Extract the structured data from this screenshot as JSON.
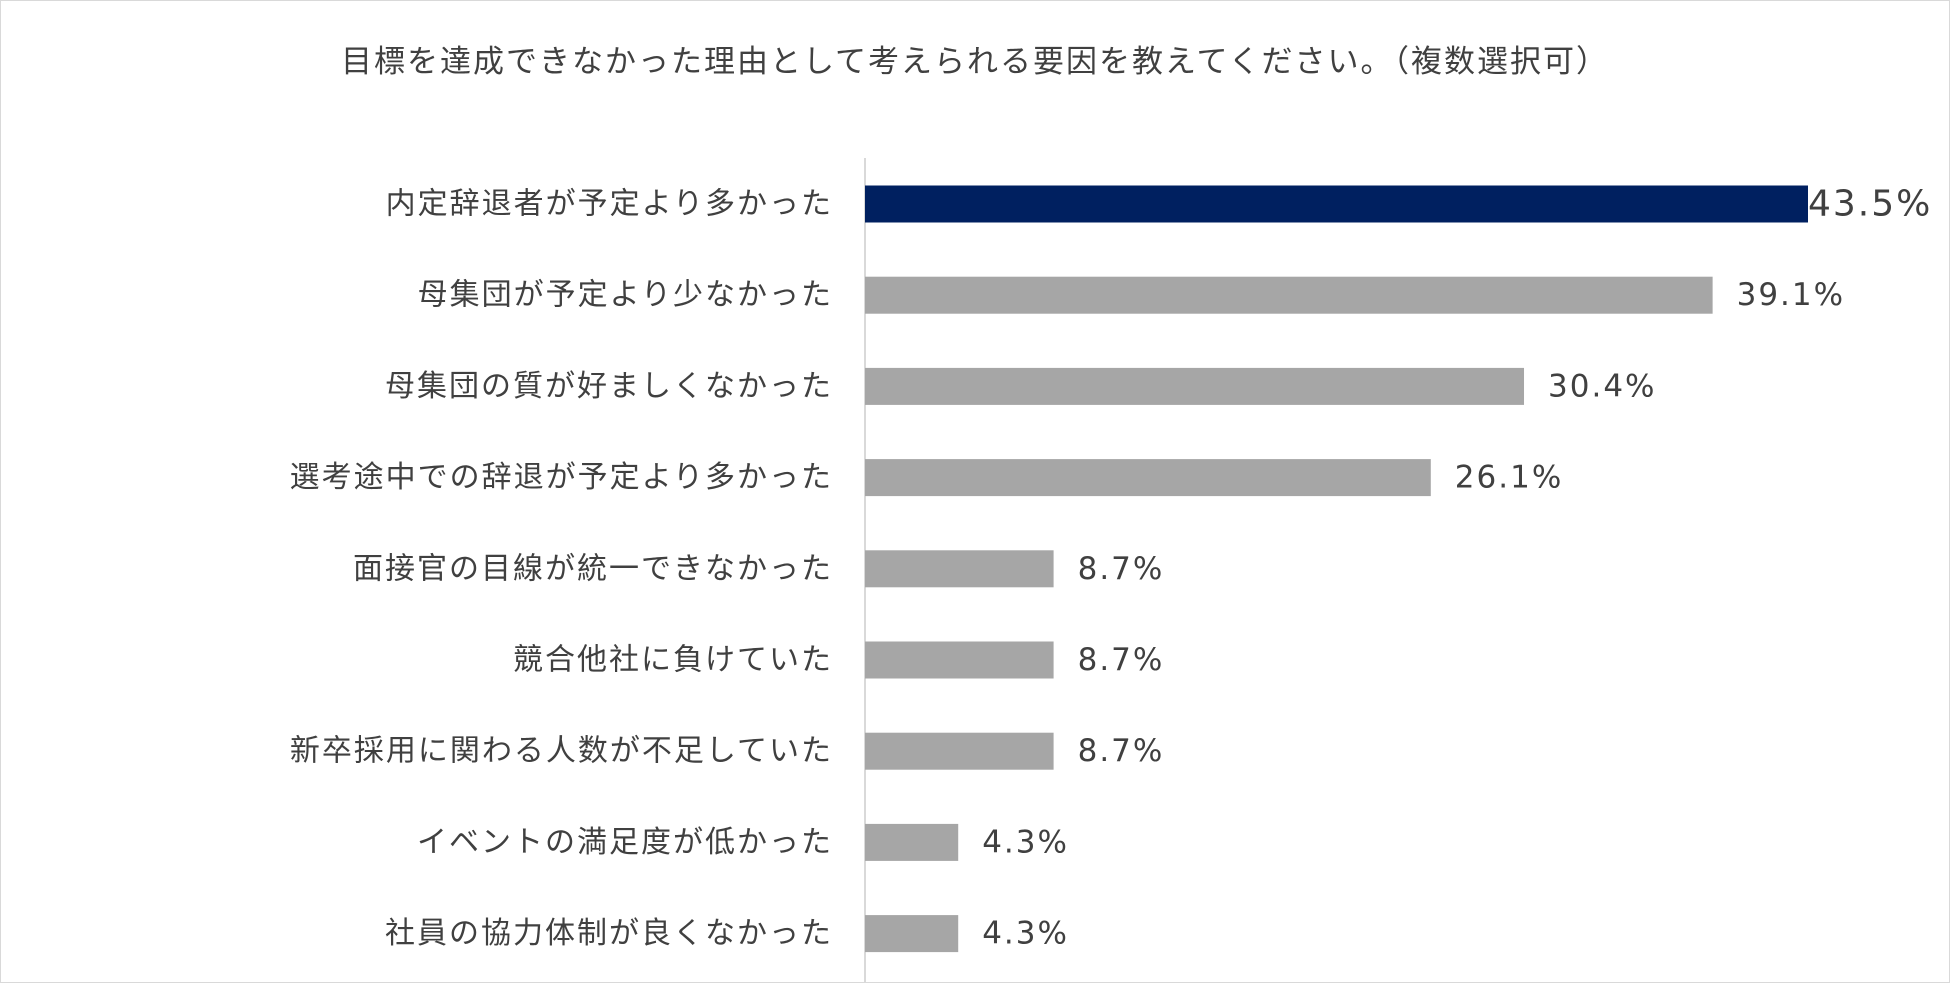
{
  "chart_data": {
    "type": "bar",
    "orientation": "horizontal",
    "title": "目標を達成できなかった理由として考えられる要因を教えてください。（複数選択可）",
    "xlabel": "",
    "ylabel": "",
    "value_unit": "%",
    "grid": false,
    "legend": "none",
    "xlim": [
      0,
      43.5
    ],
    "categories": [
      "内定辞退者が予定より多かった",
      "母集団が予定より少なかった",
      "母集団の質が好ましくなかった",
      "選考途中での辞退が予定より多かった",
      "面接官の目線が統一できなかった",
      "競合他社に負けていた",
      "新卒採用に関わる人数が不足していた",
      "イベントの満足度が低かった",
      "社員の協力体制が良くなかった"
    ],
    "values": [
      43.5,
      39.1,
      30.4,
      26.1,
      8.7,
      8.7,
      8.7,
      4.3,
      4.3
    ],
    "value_labels": [
      "43.5%",
      "39.1%",
      "30.4%",
      "26.1%",
      "8.7%",
      "8.7%",
      "8.7%",
      "4.3%",
      "4.3%"
    ],
    "highlight_index": 0,
    "colors": {
      "highlight": "#002060",
      "bar": "#a6a6a6",
      "text": "#404040",
      "axis": "#d9d9d9"
    }
  }
}
